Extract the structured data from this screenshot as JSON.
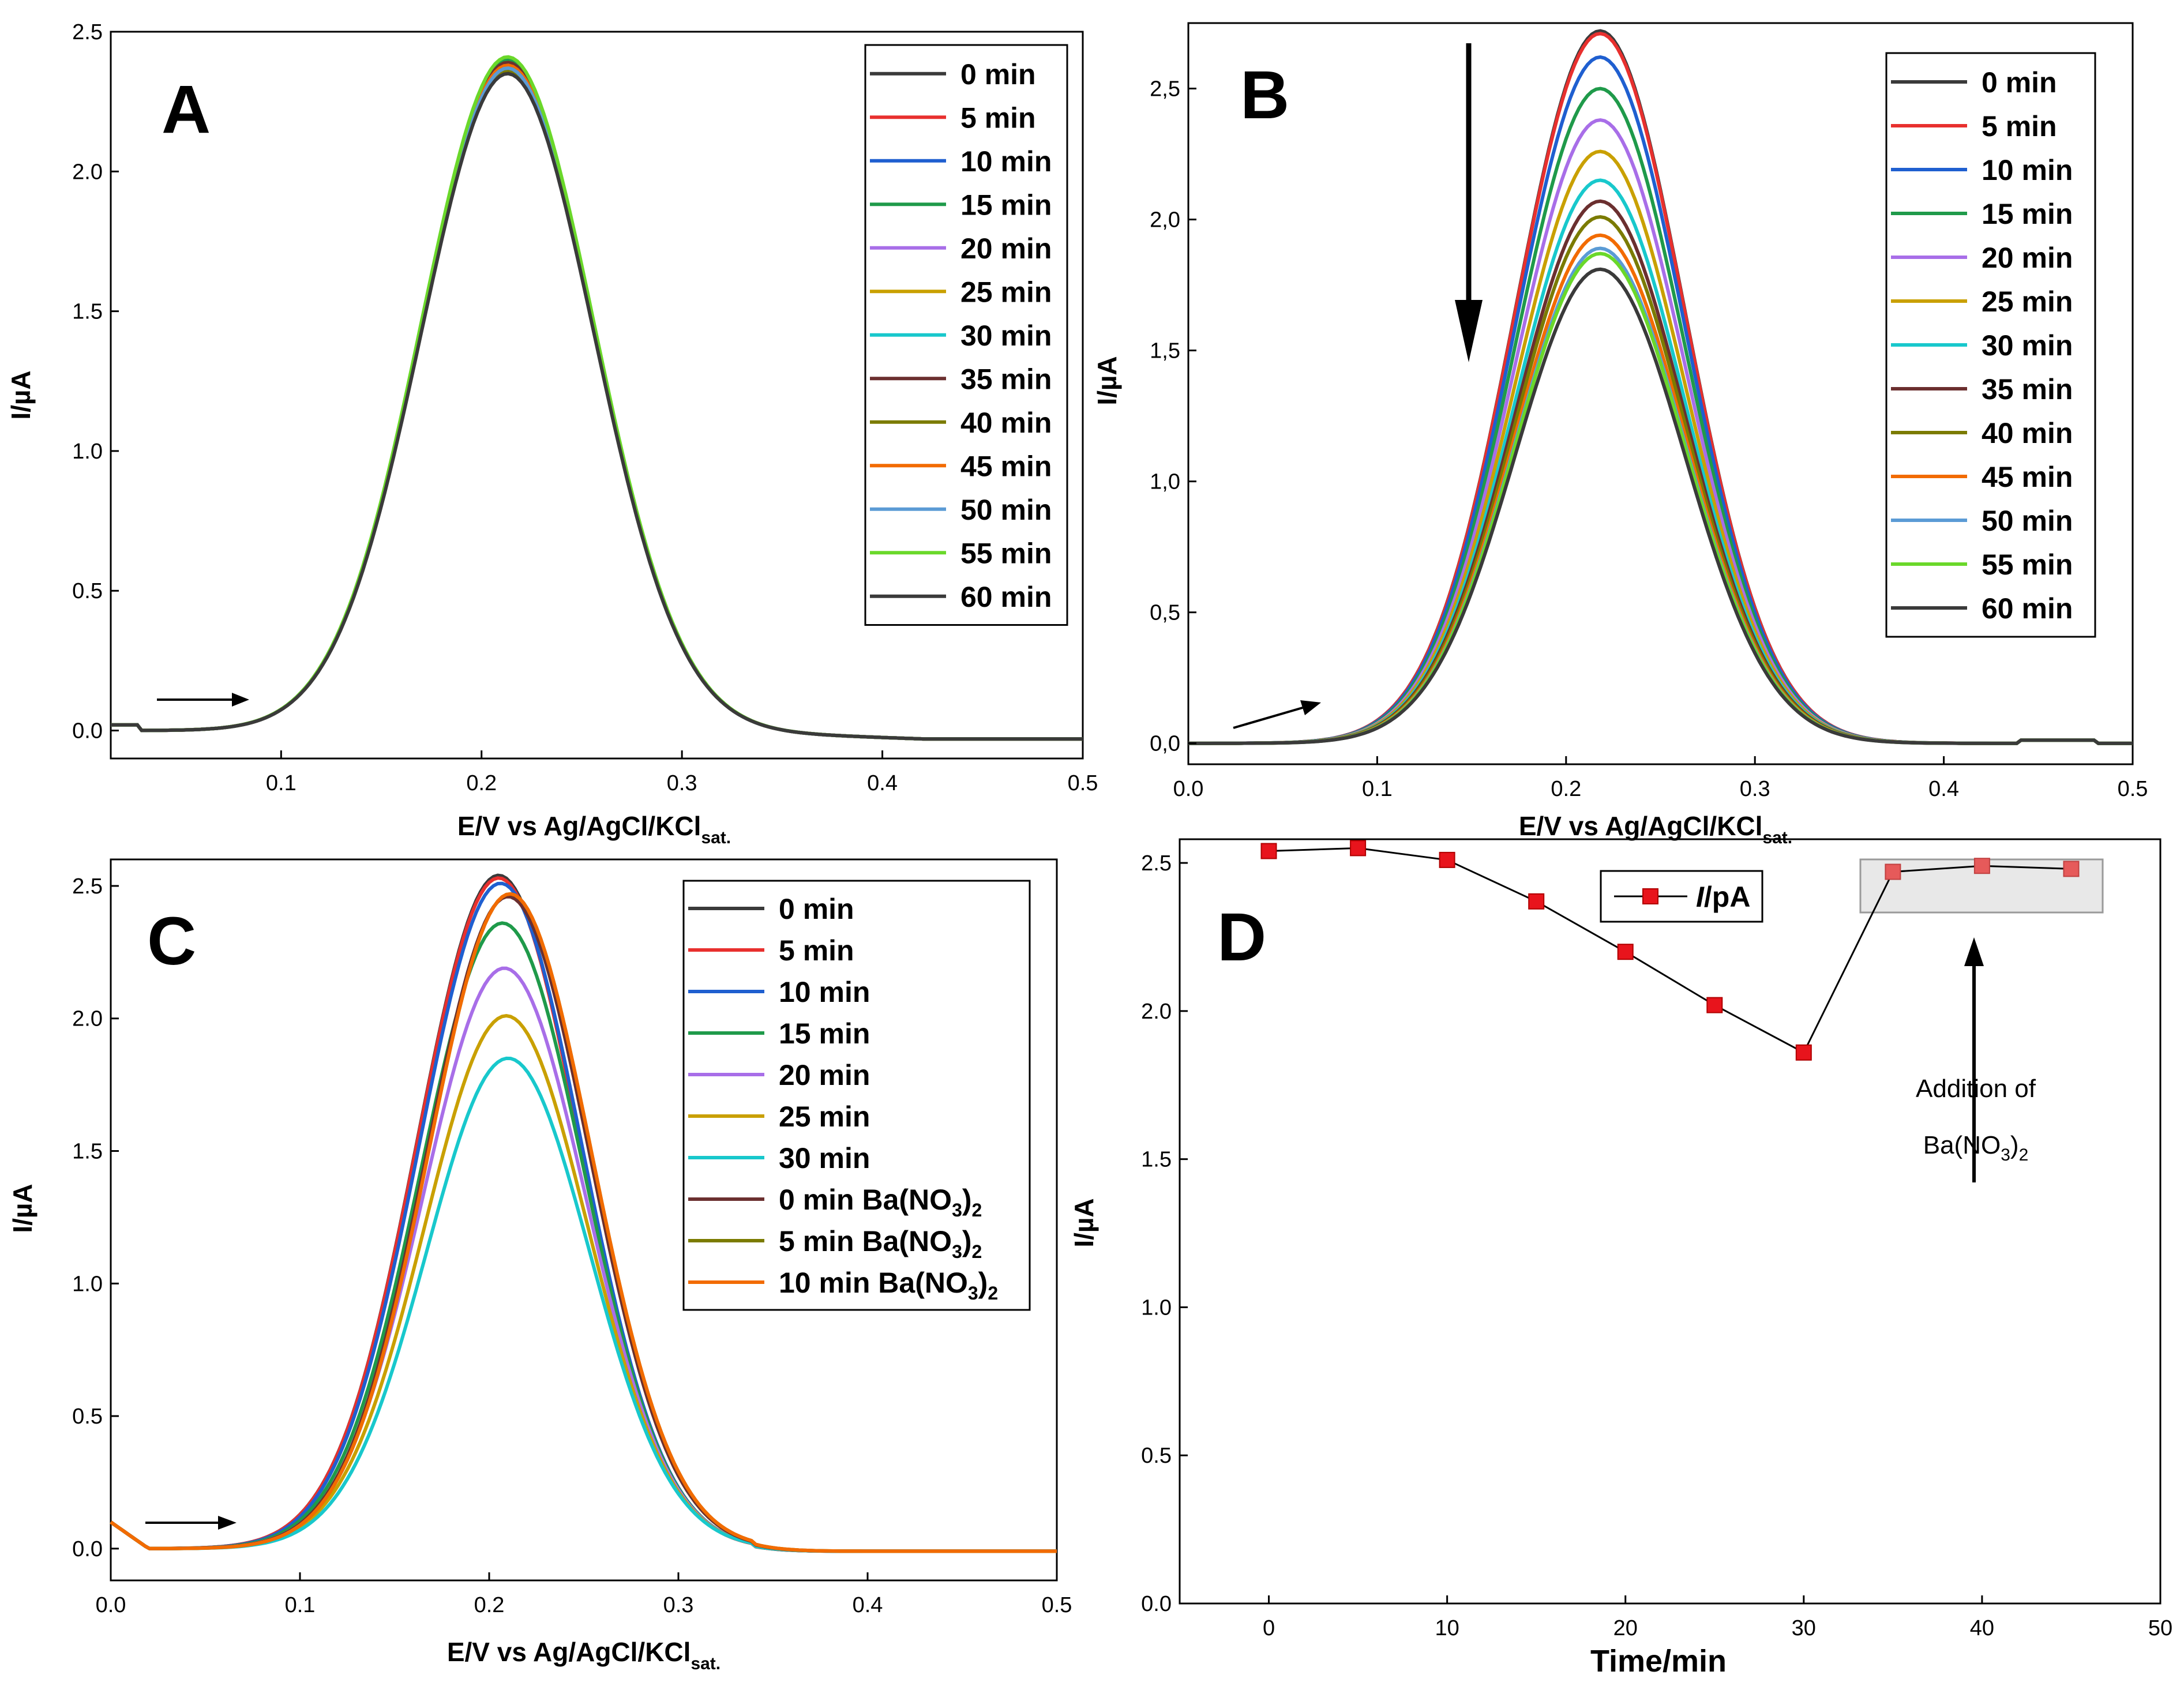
{
  "figure": {
    "x_axis_label_main": "E/V vs Ag/AgCl/KCl",
    "x_axis_label_sub": "sat.",
    "y_axis_label": "I/µA"
  },
  "chart_data": [
    {
      "panel": "A",
      "type": "line",
      "title": "A",
      "xlabel": "E/V vs Ag/AgCl/KCl",
      "xlabel_subscript": "sat.",
      "ylabel": "I/µA",
      "xlim": [
        0.015,
        0.5
      ],
      "ylim": [
        -0.1,
        2.5
      ],
      "xticks": [
        "0.1",
        "0.2",
        "0.3",
        "0.4",
        "0.5"
      ],
      "yticks": [
        "0.0",
        "0.5",
        "1.0",
        "1.5",
        "2.0",
        "2.5"
      ],
      "peak_center": 0.213,
      "peak_width": 0.043,
      "legend_position": "top-right",
      "series": [
        {
          "name": "0 min",
          "color": "#3a3a3a",
          "peak": 2.38
        },
        {
          "name": "5 min",
          "color": "#e8302e",
          "peak": 2.39
        },
        {
          "name": "10 min",
          "color": "#1f5fd0",
          "peak": 2.37
        },
        {
          "name": "15 min",
          "color": "#1f9a4a",
          "peak": 2.4
        },
        {
          "name": "20 min",
          "color": "#a86ee8",
          "peak": 2.36
        },
        {
          "name": "25 min",
          "color": "#c9a000",
          "peak": 2.38
        },
        {
          "name": "30 min",
          "color": "#18c8cc",
          "peak": 2.37
        },
        {
          "name": "35 min",
          "color": "#6b2f2f",
          "peak": 2.39
        },
        {
          "name": "40 min",
          "color": "#7b7b00",
          "peak": 2.36
        },
        {
          "name": "45 min",
          "color": "#f26b00",
          "peak": 2.38
        },
        {
          "name": "50 min",
          "color": "#5b9bd5",
          "peak": 2.37
        },
        {
          "name": "55 min",
          "color": "#6ad82a",
          "peak": 2.41
        },
        {
          "name": "60 min",
          "color": "#3a3a3a",
          "peak": 2.35
        }
      ]
    },
    {
      "panel": "B",
      "type": "line",
      "title": "B",
      "xlabel": "E/V vs Ag/AgCl/KCl",
      "xlabel_subscript": "sat.",
      "ylabel": "I/µA",
      "xlim": [
        0.0,
        0.5
      ],
      "ylim": [
        -0.08,
        2.75
      ],
      "xticks": [
        "0.0",
        "0.1",
        "0.2",
        "0.3",
        "0.4",
        "0.5"
      ],
      "yticks": [
        "0,0",
        "0,5",
        "1,0",
        "1,5",
        "2,0",
        "2,5"
      ],
      "peak_center": 0.218,
      "peak_width": 0.045,
      "legend_position": "top-right",
      "series": [
        {
          "name": "0 min",
          "color": "#3a3a3a",
          "peak": 2.72
        },
        {
          "name": "5 min",
          "color": "#e8302e",
          "peak": 2.71
        },
        {
          "name": "10 min",
          "color": "#1f5fd0",
          "peak": 2.62
        },
        {
          "name": "15 min",
          "color": "#1f9a4a",
          "peak": 2.5
        },
        {
          "name": "20 min",
          "color": "#a86ee8",
          "peak": 2.38
        },
        {
          "name": "25 min",
          "color": "#c9a000",
          "peak": 2.26
        },
        {
          "name": "30 min",
          "color": "#18c8cc",
          "peak": 2.15
        },
        {
          "name": "35 min",
          "color": "#6b2f2f",
          "peak": 2.07
        },
        {
          "name": "40 min",
          "color": "#7b7b00",
          "peak": 2.01
        },
        {
          "name": "45 min",
          "color": "#f26b00",
          "peak": 1.94
        },
        {
          "name": "50 min",
          "color": "#5b9bd5",
          "peak": 1.89
        },
        {
          "name": "55 min",
          "color": "#6ad82a",
          "peak": 1.87
        },
        {
          "name": "60 min",
          "color": "#3a3a3a",
          "peak": 1.81
        }
      ]
    },
    {
      "panel": "C",
      "type": "line",
      "title": "C",
      "xlabel": "E/V vs Ag/AgCl/KCl",
      "xlabel_subscript": "sat.",
      "ylabel": "I/µA",
      "xlim": [
        0.0,
        0.5
      ],
      "ylim": [
        -0.12,
        2.6
      ],
      "xticks": [
        "0.0",
        "0.1",
        "0.2",
        "0.3",
        "0.4",
        "0.5"
      ],
      "yticks": [
        "0.0",
        "0.5",
        "1.0",
        "1.5",
        "2.0",
        "2.5"
      ],
      "peak_width": 0.043,
      "legend_position": "top-right",
      "series": [
        {
          "name": "0 min",
          "color": "#3a3a3a",
          "peak": 2.54,
          "center": 0.205
        },
        {
          "name": "5 min",
          "color": "#e8302e",
          "peak": 2.53,
          "center": 0.205
        },
        {
          "name": "10 min",
          "color": "#1f5fd0",
          "peak": 2.51,
          "center": 0.206
        },
        {
          "name": "15 min",
          "color": "#1f9a4a",
          "peak": 2.36,
          "center": 0.207
        },
        {
          "name": "20 min",
          "color": "#a86ee8",
          "peak": 2.19,
          "center": 0.208
        },
        {
          "name": "25 min",
          "color": "#c9a000",
          "peak": 2.01,
          "center": 0.209
        },
        {
          "name": "30 min",
          "color": "#18c8cc",
          "peak": 1.85,
          "center": 0.21
        },
        {
          "name": "0 min Ba(NO3)2",
          "label_main": "0 min Ba(NO",
          "label_sub": "3",
          "label_close": ")",
          "label_sub2": "2",
          "color": "#6b2f2f",
          "peak": 2.46,
          "center": 0.21
        },
        {
          "name": "5 min Ba(NO3)2",
          "label_main": "5 min Ba(NO",
          "label_sub": "3",
          "label_close": ")",
          "label_sub2": "2",
          "color": "#7b7b00",
          "peak": 2.47,
          "center": 0.211
        },
        {
          "name": "10 min Ba(NO3)2",
          "label_main": "10 min Ba(NO",
          "label_sub": "3",
          "label_close": ")",
          "label_sub2": "2",
          "color": "#f26b00",
          "peak": 2.47,
          "center": 0.211
        }
      ]
    },
    {
      "panel": "D",
      "type": "line",
      "title": "D",
      "xlabel": "Time/min",
      "ylabel": "I/µA",
      "xlim": [
        -5,
        50
      ],
      "ylim": [
        0.0,
        2.58
      ],
      "xticks": [
        "0",
        "10",
        "20",
        "30",
        "40",
        "50"
      ],
      "yticks": [
        "0.0",
        "0.5",
        "1.0",
        "1.5",
        "2.0",
        "2.5"
      ],
      "legend_label": "I/pA",
      "legend_italic_part": "I",
      "legend_rest": "/pA",
      "legend_position": "top-center",
      "series": [
        {
          "name": "I/pA",
          "color": "#e8141c",
          "x": [
            0,
            5,
            10,
            15,
            20,
            25,
            30,
            35,
            40,
            45
          ],
          "y": [
            2.54,
            2.55,
            2.51,
            2.37,
            2.2,
            2.02,
            1.86,
            2.47,
            2.49,
            2.48
          ]
        }
      ],
      "annotation": {
        "line1": "Addition of",
        "line2_main": "Ba(NO",
        "line2_sub": "3",
        "line2_close": ")",
        "line2_sub2": "2"
      }
    }
  ]
}
